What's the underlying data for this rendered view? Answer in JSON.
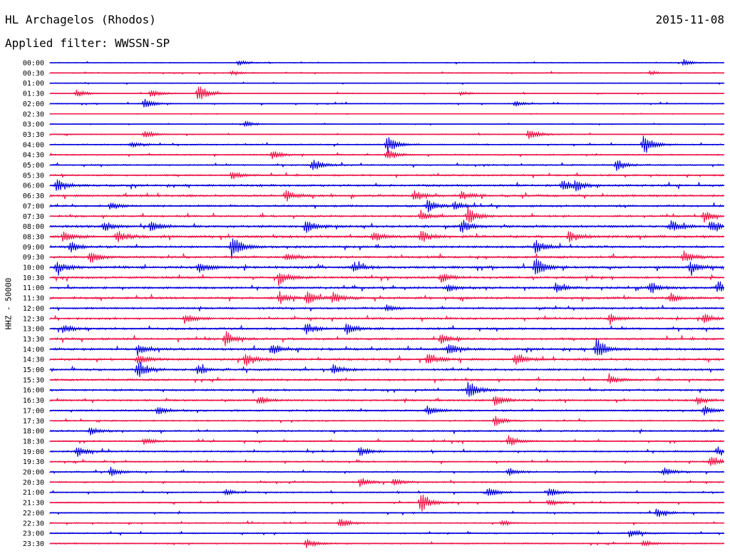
{
  "header": {
    "station": "HL Archagelos (Rhodos)",
    "date": "2015-11-08",
    "filter": "Applied filter: WWSSN-SP"
  },
  "chart_data": {
    "type": "line",
    "title": "HL Archagelos (Rhodos)",
    "ylabel": "HHZ - 50000",
    "xlabel": "",
    "row_labels": [
      "00:00",
      "00:30",
      "01:00",
      "01:30",
      "02:00",
      "02:30",
      "03:00",
      "03:30",
      "04:00",
      "04:30",
      "05:00",
      "05:30",
      "06:00",
      "06:30",
      "07:00",
      "07:30",
      "08:00",
      "08:30",
      "09:00",
      "09:30",
      "10:00",
      "10:30",
      "11:00",
      "11:30",
      "12:00",
      "12:30",
      "13:00",
      "13:30",
      "14:00",
      "14:30",
      "15:00",
      "15:30",
      "16:00",
      "16:30",
      "17:00",
      "17:30",
      "18:00",
      "18:30",
      "19:00",
      "19:30",
      "20:00",
      "20:30",
      "21:00",
      "21:30",
      "22:00",
      "22:30",
      "23:00",
      "23:30"
    ],
    "colors": [
      "#0000dd",
      "#ee1144"
    ],
    "noise_level": [
      0.5,
      0.6,
      0.5,
      0.5,
      0.6,
      0.3,
      0.4,
      0.6,
      0.8,
      0.8,
      0.9,
      1.0,
      1.3,
      1.3,
      1.2,
      1.2,
      1.4,
      1.5,
      1.4,
      1.4,
      1.5,
      1.3,
      1.3,
      1.4,
      1.2,
      1.3,
      1.3,
      1.3,
      1.4,
      1.4,
      1.3,
      1.2,
      1.2,
      1.1,
      1.1,
      0.9,
      1.0,
      0.9,
      1.0,
      0.9,
      0.9,
      0.9,
      0.8,
      0.8,
      0.8,
      0.8,
      0.8,
      0.8
    ],
    "events": [
      {
        "row": 0,
        "t": 0.28,
        "amp": 4
      },
      {
        "row": 0,
        "t": 0.94,
        "amp": 4
      },
      {
        "row": 1,
        "t": 0.27,
        "amp": 3
      },
      {
        "row": 1,
        "t": 0.89,
        "amp": 3
      },
      {
        "row": 3,
        "t": 0.04,
        "amp": 6
      },
      {
        "row": 3,
        "t": 0.15,
        "amp": 6
      },
      {
        "row": 3,
        "t": 0.22,
        "amp": 14
      },
      {
        "row": 3,
        "t": 0.61,
        "amp": 3
      },
      {
        "row": 4,
        "t": 0.14,
        "amp": 7
      },
      {
        "row": 4,
        "t": 0.69,
        "amp": 4
      },
      {
        "row": 6,
        "t": 0.29,
        "amp": 4
      },
      {
        "row": 7,
        "t": 0.14,
        "amp": 6
      },
      {
        "row": 7,
        "t": 0.71,
        "amp": 9
      },
      {
        "row": 8,
        "t": 0.12,
        "amp": 4
      },
      {
        "row": 8,
        "t": 0.5,
        "amp": 13
      },
      {
        "row": 8,
        "t": 0.88,
        "amp": 14
      },
      {
        "row": 9,
        "t": 0.33,
        "amp": 6
      },
      {
        "row": 9,
        "t": 0.5,
        "amp": 9
      },
      {
        "row": 10,
        "t": 0.39,
        "amp": 9
      },
      {
        "row": 10,
        "t": 0.84,
        "amp": 9
      },
      {
        "row": 11,
        "t": 0.27,
        "amp": 6
      },
      {
        "row": 12,
        "t": 0.01,
        "amp": 9
      },
      {
        "row": 12,
        "t": 0.76,
        "amp": 9
      },
      {
        "row": 12,
        "t": 0.78,
        "amp": 7
      },
      {
        "row": 13,
        "t": 0.35,
        "amp": 8
      },
      {
        "row": 13,
        "t": 0.54,
        "amp": 8
      },
      {
        "row": 13,
        "t": 0.61,
        "amp": 6
      },
      {
        "row": 14,
        "t": 0.09,
        "amp": 6
      },
      {
        "row": 14,
        "t": 0.56,
        "amp": 9
      },
      {
        "row": 14,
        "t": 0.6,
        "amp": 7
      },
      {
        "row": 15,
        "t": 0.55,
        "amp": 8
      },
      {
        "row": 15,
        "t": 0.62,
        "amp": 13
      },
      {
        "row": 15,
        "t": 0.97,
        "amp": 8
      },
      {
        "row": 16,
        "t": 0.08,
        "amp": 8
      },
      {
        "row": 16,
        "t": 0.15,
        "amp": 9
      },
      {
        "row": 16,
        "t": 0.38,
        "amp": 9
      },
      {
        "row": 16,
        "t": 0.61,
        "amp": 10
      },
      {
        "row": 16,
        "t": 0.92,
        "amp": 9
      },
      {
        "row": 16,
        "t": 0.98,
        "amp": 9
      },
      {
        "row": 17,
        "t": 0.02,
        "amp": 8
      },
      {
        "row": 17,
        "t": 0.1,
        "amp": 9
      },
      {
        "row": 17,
        "t": 0.48,
        "amp": 8
      },
      {
        "row": 17,
        "t": 0.55,
        "amp": 9
      },
      {
        "row": 17,
        "t": 0.77,
        "amp": 8
      },
      {
        "row": 18,
        "t": 0.03,
        "amp": 8
      },
      {
        "row": 18,
        "t": 0.27,
        "amp": 18
      },
      {
        "row": 18,
        "t": 0.72,
        "amp": 10
      },
      {
        "row": 19,
        "t": 0.06,
        "amp": 9
      },
      {
        "row": 19,
        "t": 0.35,
        "amp": 6
      },
      {
        "row": 19,
        "t": 0.94,
        "amp": 8
      },
      {
        "row": 20,
        "t": 0.01,
        "amp": 9
      },
      {
        "row": 20,
        "t": 0.22,
        "amp": 9
      },
      {
        "row": 20,
        "t": 0.45,
        "amp": 8
      },
      {
        "row": 20,
        "t": 0.72,
        "amp": 14
      },
      {
        "row": 20,
        "t": 0.95,
        "amp": 9
      },
      {
        "row": 21,
        "t": 0.34,
        "amp": 11
      },
      {
        "row": 21,
        "t": 0.58,
        "amp": 7
      },
      {
        "row": 22,
        "t": 0.59,
        "amp": 6
      },
      {
        "row": 22,
        "t": 0.75,
        "amp": 7
      },
      {
        "row": 22,
        "t": 0.89,
        "amp": 9
      },
      {
        "row": 22,
        "t": 0.99,
        "amp": 8
      },
      {
        "row": 23,
        "t": 0.34,
        "amp": 9
      },
      {
        "row": 23,
        "t": 0.38,
        "amp": 9
      },
      {
        "row": 23,
        "t": 0.42,
        "amp": 8
      },
      {
        "row": 23,
        "t": 0.92,
        "amp": 7
      },
      {
        "row": 24,
        "t": 0.5,
        "amp": 5
      },
      {
        "row": 25,
        "t": 0.2,
        "amp": 7
      },
      {
        "row": 25,
        "t": 0.83,
        "amp": 6
      },
      {
        "row": 25,
        "t": 0.97,
        "amp": 7
      },
      {
        "row": 26,
        "t": 0.02,
        "amp": 7
      },
      {
        "row": 26,
        "t": 0.38,
        "amp": 9
      },
      {
        "row": 26,
        "t": 0.44,
        "amp": 8
      },
      {
        "row": 27,
        "t": 0.26,
        "amp": 11
      },
      {
        "row": 27,
        "t": 0.58,
        "amp": 7
      },
      {
        "row": 28,
        "t": 0.13,
        "amp": 8
      },
      {
        "row": 28,
        "t": 0.33,
        "amp": 8
      },
      {
        "row": 28,
        "t": 0.59,
        "amp": 9
      },
      {
        "row": 28,
        "t": 0.81,
        "amp": 17
      },
      {
        "row": 29,
        "t": 0.13,
        "amp": 7
      },
      {
        "row": 29,
        "t": 0.29,
        "amp": 11
      },
      {
        "row": 29,
        "t": 0.56,
        "amp": 10
      },
      {
        "row": 29,
        "t": 0.69,
        "amp": 8
      },
      {
        "row": 30,
        "t": 0.13,
        "amp": 14
      },
      {
        "row": 30,
        "t": 0.22,
        "amp": 7
      },
      {
        "row": 30,
        "t": 0.42,
        "amp": 7
      },
      {
        "row": 31,
        "t": 0.83,
        "amp": 7
      },
      {
        "row": 32,
        "t": 0.62,
        "amp": 14
      },
      {
        "row": 33,
        "t": 0.31,
        "amp": 6
      },
      {
        "row": 33,
        "t": 0.66,
        "amp": 9
      },
      {
        "row": 33,
        "t": 0.96,
        "amp": 6
      },
      {
        "row": 34,
        "t": 0.16,
        "amp": 6
      },
      {
        "row": 34,
        "t": 0.56,
        "amp": 8
      },
      {
        "row": 34,
        "t": 0.97,
        "amp": 7
      },
      {
        "row": 35,
        "t": 0.66,
        "amp": 8
      },
      {
        "row": 36,
        "t": 0.06,
        "amp": 7
      },
      {
        "row": 37,
        "t": 0.14,
        "amp": 5
      },
      {
        "row": 37,
        "t": 0.68,
        "amp": 9
      },
      {
        "row": 38,
        "t": 0.04,
        "amp": 8
      },
      {
        "row": 38,
        "t": 0.46,
        "amp": 8
      },
      {
        "row": 38,
        "t": 0.99,
        "amp": 7
      },
      {
        "row": 39,
        "t": 0.98,
        "amp": 7
      },
      {
        "row": 40,
        "t": 0.09,
        "amp": 7
      },
      {
        "row": 40,
        "t": 0.68,
        "amp": 6
      },
      {
        "row": 40,
        "t": 0.91,
        "amp": 6
      },
      {
        "row": 41,
        "t": 0.46,
        "amp": 7
      },
      {
        "row": 41,
        "t": 0.51,
        "amp": 5
      },
      {
        "row": 42,
        "t": 0.26,
        "amp": 5
      },
      {
        "row": 42,
        "t": 0.65,
        "amp": 8
      },
      {
        "row": 42,
        "t": 0.74,
        "amp": 7
      },
      {
        "row": 43,
        "t": 0.55,
        "amp": 15
      },
      {
        "row": 43,
        "t": 0.74,
        "amp": 6
      },
      {
        "row": 44,
        "t": 0.9,
        "amp": 7
      },
      {
        "row": 45,
        "t": 0.43,
        "amp": 8
      },
      {
        "row": 45,
        "t": 0.67,
        "amp": 4
      },
      {
        "row": 46,
        "t": 0.86,
        "amp": 6
      },
      {
        "row": 47,
        "t": 0.38,
        "amp": 7
      },
      {
        "row": 47,
        "t": 0.88,
        "amp": 4
      }
    ]
  }
}
